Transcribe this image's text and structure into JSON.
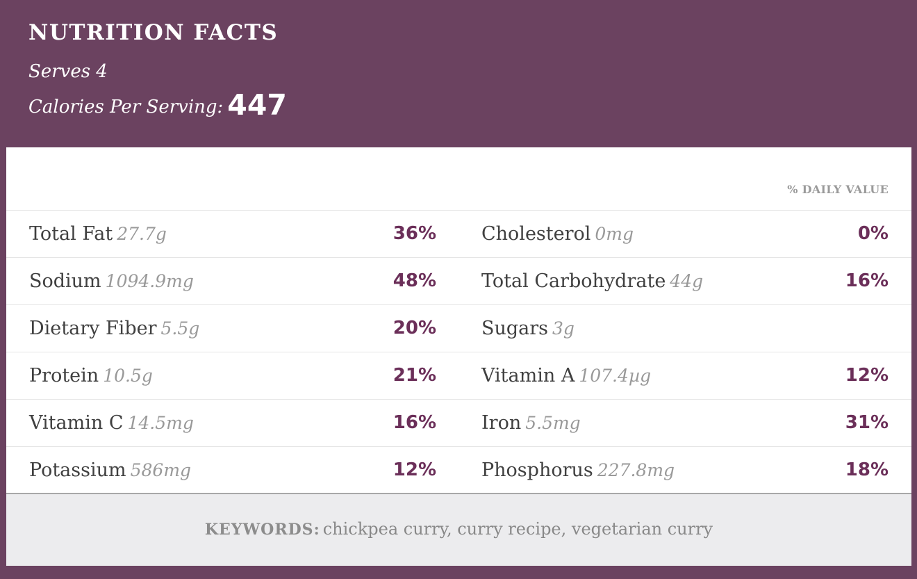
{
  "header": {
    "title": "NUTRITION FACTS",
    "serves": "Serves 4",
    "calories_label": "Calories Per Serving:",
    "calories_value": "447"
  },
  "table": {
    "daily_value_label": "% DAILY VALUE",
    "rows": [
      {
        "left": {
          "name": "Total Fat",
          "amount": "27.7g",
          "pct": "36%"
        },
        "right": {
          "name": "Cholesterol",
          "amount": "0mg",
          "pct": "0%"
        }
      },
      {
        "left": {
          "name": "Sodium",
          "amount": "1094.9mg",
          "pct": "48%"
        },
        "right": {
          "name": "Total Carbohydrate",
          "amount": "44g",
          "pct": "16%"
        }
      },
      {
        "left": {
          "name": "Dietary Fiber",
          "amount": "5.5g",
          "pct": "20%"
        },
        "right": {
          "name": "Sugars",
          "amount": "3g",
          "pct": ""
        }
      },
      {
        "left": {
          "name": "Protein",
          "amount": "10.5g",
          "pct": "21%"
        },
        "right": {
          "name": "Vitamin A",
          "amount": "107.4µg",
          "pct": "12%"
        }
      },
      {
        "left": {
          "name": "Vitamin C",
          "amount": "14.5mg",
          "pct": "16%"
        },
        "right": {
          "name": "Iron",
          "amount": "5.5mg",
          "pct": "31%"
        }
      },
      {
        "left": {
          "name": "Potassium",
          "amount": "586mg",
          "pct": "12%"
        },
        "right": {
          "name": "Phosphorus",
          "amount": "227.8mg",
          "pct": "18%"
        }
      }
    ]
  },
  "footer": {
    "keywords_label": "KEYWORDS:",
    "keywords": "chickpea curry, curry recipe, vegetarian curry"
  },
  "colors": {
    "header_bg": "#6b4260",
    "percent_text": "#6b2f59",
    "footer_bg": "#ececee"
  }
}
